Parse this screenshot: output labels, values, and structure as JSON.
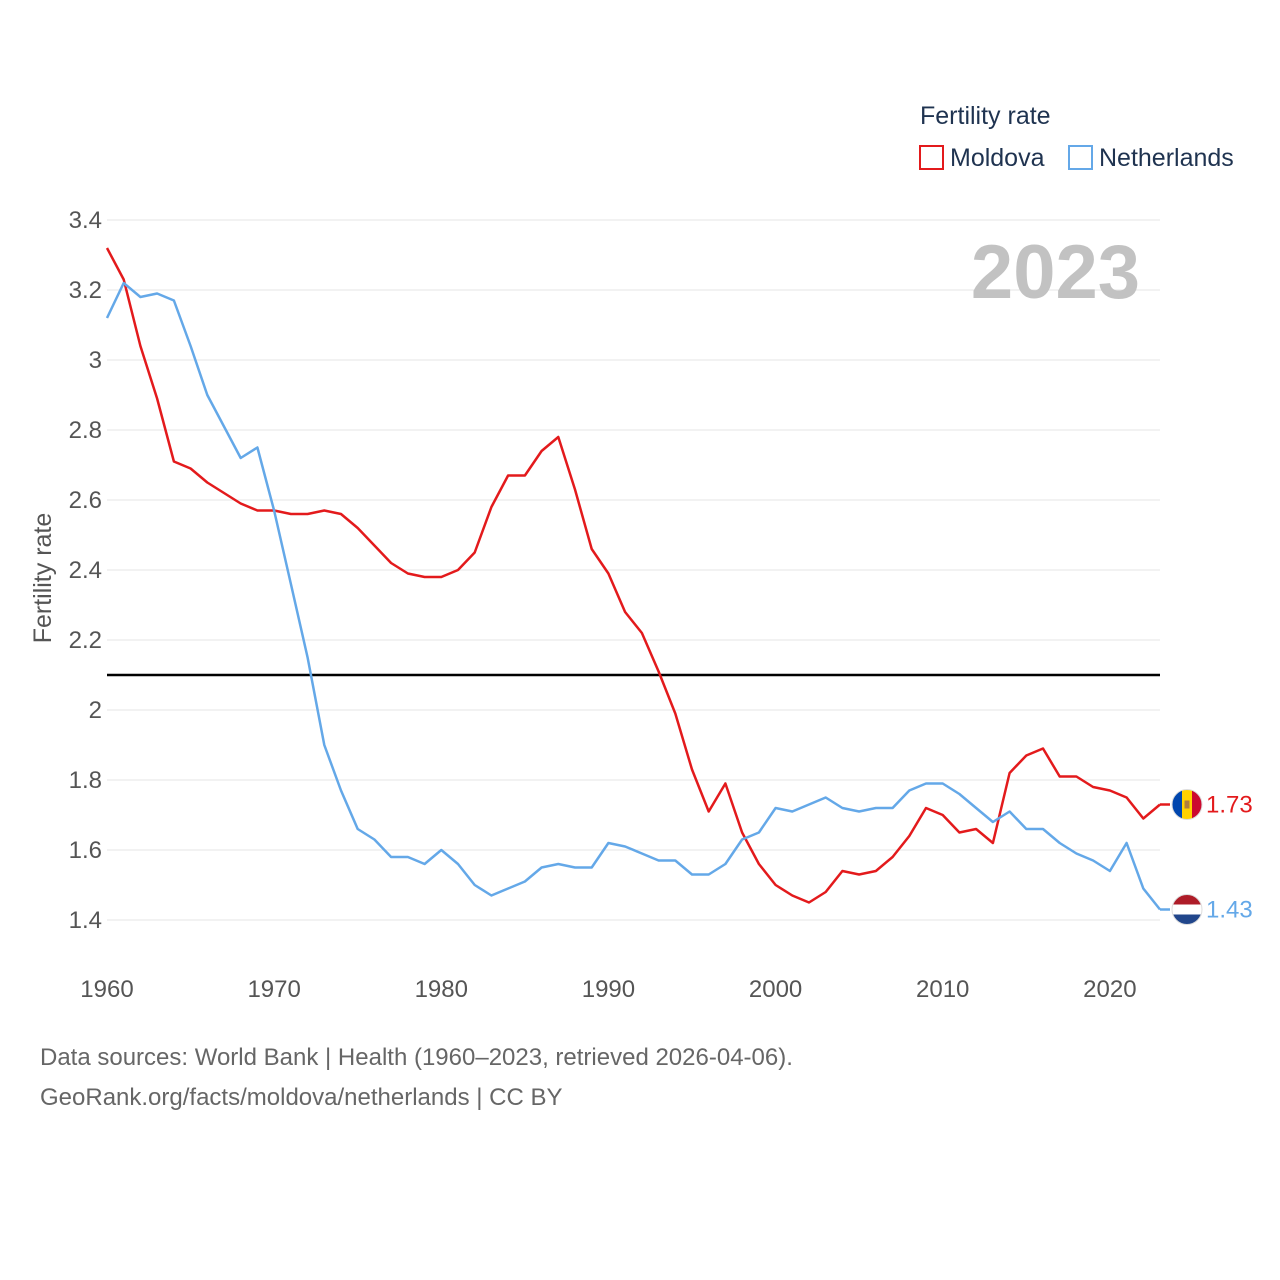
{
  "chart_data": {
    "type": "line",
    "title": "",
    "xlabel": "",
    "ylabel": "Fertility rate",
    "year_label": "2023",
    "legend_title": "Fertility rate",
    "legend_position": "top-right",
    "xlim": [
      1960,
      2023
    ],
    "ylim": [
      1.3,
      3.45
    ],
    "x_ticks": [
      1960,
      1970,
      1980,
      1990,
      2000,
      2010,
      2020
    ],
    "y_ticks": [
      1.4,
      1.6,
      1.8,
      2,
      2.2,
      2.4,
      2.6,
      2.8,
      3,
      3.2,
      3.4
    ],
    "y_tick_labels": [
      "1.4",
      "1.6",
      "1.8",
      "2",
      "2.2",
      "2.4",
      "2.6",
      "2.8",
      "3",
      "3.2",
      "3.4"
    ],
    "x_tick_labels": [
      "1960",
      "1970",
      "1980",
      "1990",
      "2000",
      "2010",
      "2020"
    ],
    "reference_line": 2.1,
    "grid": true,
    "x": [
      1960,
      1961,
      1962,
      1963,
      1964,
      1965,
      1966,
      1967,
      1968,
      1969,
      1970,
      1971,
      1972,
      1973,
      1974,
      1975,
      1976,
      1977,
      1978,
      1979,
      1980,
      1981,
      1982,
      1983,
      1984,
      1985,
      1986,
      1987,
      1988,
      1989,
      1990,
      1991,
      1992,
      1993,
      1994,
      1995,
      1996,
      1997,
      1998,
      1999,
      2000,
      2001,
      2002,
      2003,
      2004,
      2005,
      2006,
      2007,
      2008,
      2009,
      2010,
      2011,
      2012,
      2013,
      2014,
      2015,
      2016,
      2017,
      2018,
      2019,
      2020,
      2021,
      2022,
      2023
    ],
    "series": [
      {
        "name": "Moldova",
        "color": "#e31a1c",
        "end_label": "1.73",
        "flag": "moldova-flag",
        "values": [
          3.32,
          3.23,
          3.04,
          2.89,
          2.71,
          2.69,
          2.65,
          2.62,
          2.59,
          2.57,
          2.57,
          2.56,
          2.56,
          2.57,
          2.56,
          2.52,
          2.47,
          2.42,
          2.39,
          2.38,
          2.38,
          2.4,
          2.45,
          2.58,
          2.67,
          2.67,
          2.74,
          2.78,
          2.63,
          2.46,
          2.39,
          2.28,
          2.22,
          2.11,
          1.99,
          1.83,
          1.71,
          1.79,
          1.65,
          1.56,
          1.5,
          1.47,
          1.45,
          1.48,
          1.54,
          1.53,
          1.54,
          1.58,
          1.64,
          1.72,
          1.7,
          1.65,
          1.66,
          1.62,
          1.82,
          1.87,
          1.89,
          1.81,
          1.81,
          1.78,
          1.77,
          1.75,
          1.69,
          1.73
        ]
      },
      {
        "name": "Netherlands",
        "color": "#64a8e8",
        "end_label": "1.43",
        "flag": "netherlands-flag",
        "values": [
          3.12,
          3.22,
          3.18,
          3.19,
          3.17,
          3.04,
          2.9,
          2.81,
          2.72,
          2.75,
          2.57,
          2.36,
          2.15,
          1.9,
          1.77,
          1.66,
          1.63,
          1.58,
          1.58,
          1.56,
          1.6,
          1.56,
          1.5,
          1.47,
          1.49,
          1.51,
          1.55,
          1.56,
          1.55,
          1.55,
          1.62,
          1.61,
          1.59,
          1.57,
          1.57,
          1.53,
          1.53,
          1.56,
          1.63,
          1.65,
          1.72,
          1.71,
          1.73,
          1.75,
          1.72,
          1.71,
          1.72,
          1.72,
          1.77,
          1.79,
          1.79,
          1.76,
          1.72,
          1.68,
          1.71,
          1.66,
          1.66,
          1.62,
          1.59,
          1.57,
          1.54,
          1.62,
          1.49,
          1.43
        ]
      }
    ]
  },
  "footer": {
    "line1": "Data sources: World Bank | Health (1960–2023, retrieved 2026-04-06).",
    "line2": "GeoRank.org/facts/moldova/netherlands | CC BY"
  }
}
